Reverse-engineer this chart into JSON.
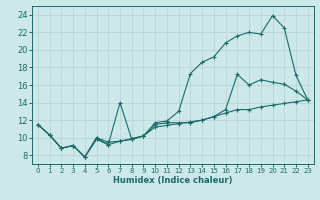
{
  "title": "",
  "xlabel": "Humidex (Indice chaleur)",
  "ylabel": "",
  "background_color": "#cde8e8",
  "grid_color": "#b8d4d4",
  "line_color": "#1a6b6b",
  "xlim": [
    -0.5,
    23.5
  ],
  "ylim": [
    7,
    25
  ],
  "xticks": [
    0,
    1,
    2,
    3,
    4,
    5,
    6,
    7,
    8,
    9,
    10,
    11,
    12,
    13,
    14,
    15,
    16,
    17,
    18,
    19,
    20,
    21,
    22,
    23
  ],
  "yticks": [
    8,
    10,
    12,
    14,
    16,
    18,
    20,
    22,
    24
  ],
  "line1_x": [
    0,
    1,
    2,
    3,
    4,
    5,
    6,
    7,
    8,
    9,
    10,
    11,
    12,
    13,
    14,
    15,
    16,
    17,
    18,
    19,
    20,
    21,
    22,
    23
  ],
  "line1_y": [
    11.5,
    10.3,
    8.8,
    9.1,
    7.8,
    10.0,
    9.5,
    9.6,
    9.9,
    10.2,
    11.7,
    11.9,
    13.0,
    17.3,
    18.6,
    19.2,
    20.8,
    21.6,
    22.0,
    21.8,
    23.9,
    22.5,
    17.1,
    14.3
  ],
  "line2_x": [
    0,
    1,
    2,
    3,
    4,
    5,
    6,
    7,
    8,
    9,
    10,
    11,
    12,
    13,
    14,
    15,
    16,
    17,
    18,
    19,
    20,
    21,
    22,
    23
  ],
  "line2_y": [
    11.5,
    10.3,
    8.8,
    9.1,
    7.8,
    10.0,
    9.2,
    14.0,
    9.8,
    10.2,
    11.5,
    11.7,
    11.7,
    11.7,
    12.0,
    12.4,
    13.2,
    17.2,
    16.0,
    16.6,
    16.3,
    16.1,
    15.3,
    14.3
  ],
  "line3_x": [
    0,
    1,
    2,
    3,
    4,
    5,
    6,
    7,
    8,
    9,
    10,
    11,
    12,
    13,
    14,
    15,
    16,
    17,
    18,
    19,
    20,
    21,
    22,
    23
  ],
  "line3_y": [
    11.5,
    10.3,
    8.8,
    9.1,
    7.8,
    9.8,
    9.2,
    9.6,
    9.8,
    10.2,
    11.2,
    11.4,
    11.6,
    11.8,
    12.0,
    12.4,
    12.8,
    13.2,
    13.2,
    13.5,
    13.7,
    13.9,
    14.1,
    14.3
  ]
}
